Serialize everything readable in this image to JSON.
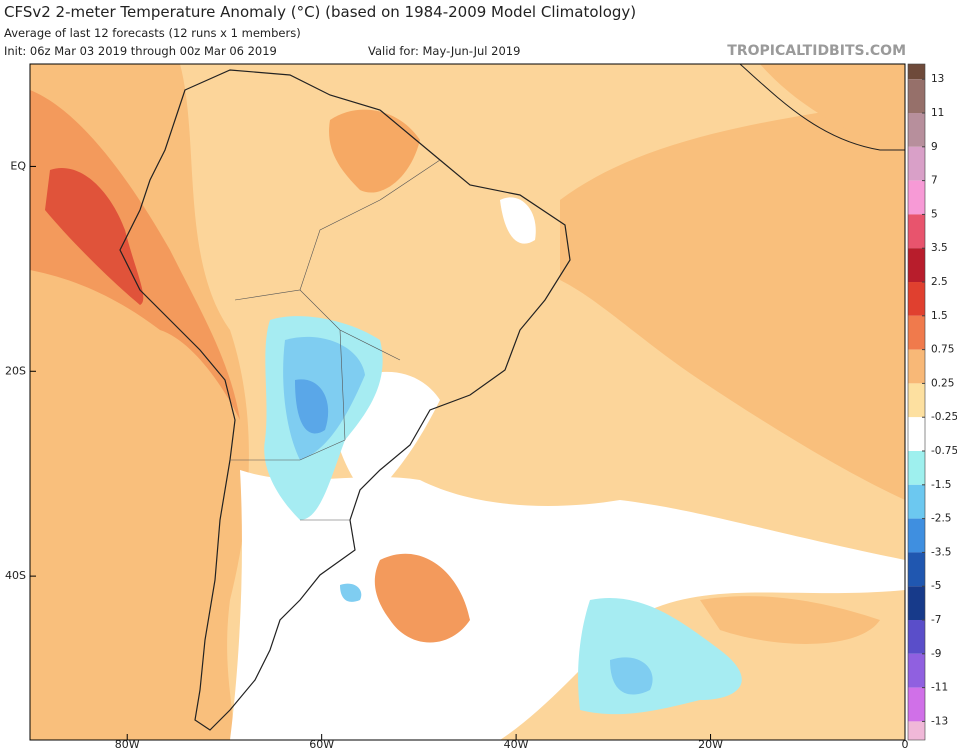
{
  "header": {
    "title": "CFSv2 2-meter Temperature Anomaly (°C) (based on 1984-2009 Model Climatology)",
    "subtitle": "Average of last 12 forecasts (12 runs x 1 members)",
    "init": "Init: 06z Mar 03 2019 through 00z Mar 06 2019",
    "valid": "Valid for: May-Jun-Jul 2019",
    "source": "TROPICALTIDBITS.COM"
  },
  "map": {
    "xlim": [
      -90,
      0
    ],
    "ylim": [
      -56,
      10
    ],
    "xticks": [
      {
        "value": -80,
        "label": "80W"
      },
      {
        "value": -60,
        "label": "60W"
      },
      {
        "value": -40,
        "label": "40W"
      },
      {
        "value": -20,
        "label": "20W"
      },
      0
    ],
    "yticks": [
      {
        "value": 0,
        "label": "EQ"
      },
      {
        "value": -20,
        "label": "20S"
      },
      {
        "value": -40,
        "label": "40S"
      }
    ]
  },
  "colorbar": {
    "ticks": [
      13,
      11,
      9,
      7,
      5,
      3.5,
      2.5,
      1.5,
      0.75,
      0.25,
      -0.25,
      -0.75,
      -1.5,
      -2.5,
      -3.5,
      -5,
      -7,
      -9,
      -11,
      -13
    ],
    "colors": [
      "#6e4a3a",
      "#96706a",
      "#b78f9c",
      "#d9a0c8",
      "#f79ad6",
      "#e8546d",
      "#b81d2c",
      "#e0402f",
      "#f07a4c",
      "#f8b877",
      "#fde0a0",
      "#ffffff",
      "#9ef0ee",
      "#6cc8f0",
      "#3f8fe0",
      "#2057b0",
      "#173a8a",
      "#5a4ec9",
      "#9060e0",
      "#d070e8",
      "#f0b8d8"
    ]
  }
}
